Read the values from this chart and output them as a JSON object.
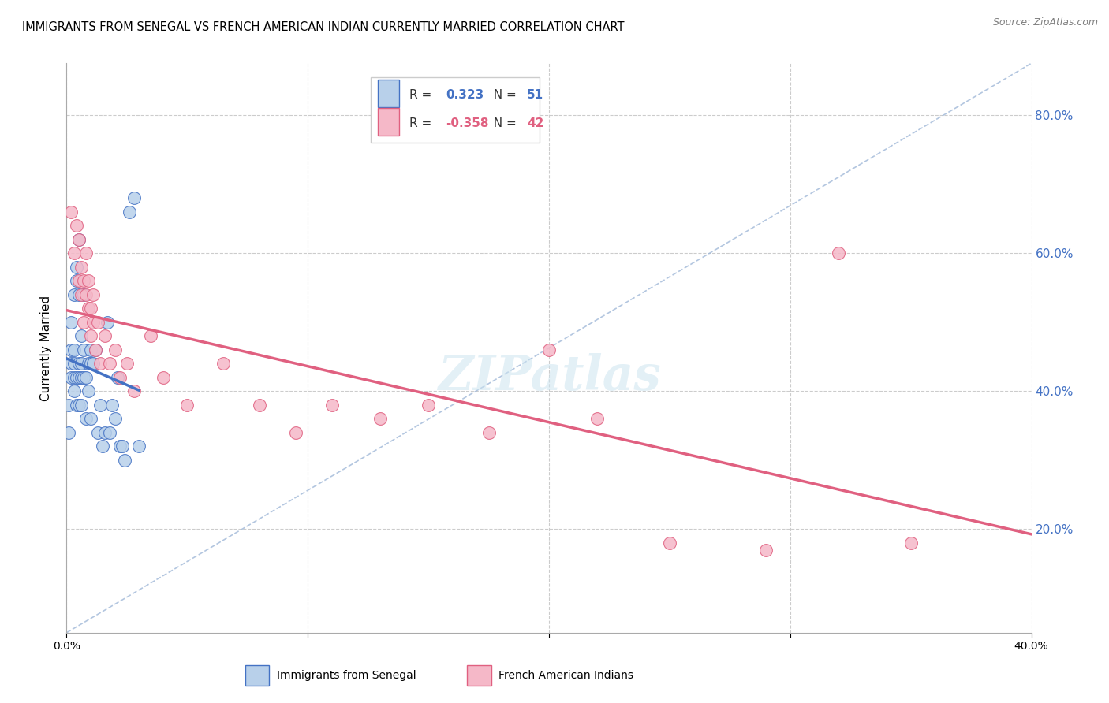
{
  "title": "IMMIGRANTS FROM SENEGAL VS FRENCH AMERICAN INDIAN CURRENTLY MARRIED CORRELATION CHART",
  "source": "Source: ZipAtlas.com",
  "ylabel": "Currently Married",
  "legend1_label": "Immigrants from Senegal",
  "legend2_label": "French American Indians",
  "r1": 0.323,
  "n1": 51,
  "r2": -0.358,
  "n2": 42,
  "xlim": [
    0.0,
    0.4
  ],
  "ylim": [
    0.05,
    0.875
  ],
  "right_yticks": [
    0.2,
    0.4,
    0.6,
    0.8
  ],
  "right_ytick_labels": [
    "20.0%",
    "40.0%",
    "60.0%",
    "80.0%"
  ],
  "blue_color": "#b8d0ea",
  "pink_color": "#f5b8c8",
  "blue_line_color": "#4472c4",
  "pink_line_color": "#e06080",
  "ref_line_color": "#a0b8d8",
  "watermark": "ZIPatlas",
  "blue_scatter_x": [
    0.001,
    0.001,
    0.002,
    0.002,
    0.002,
    0.002,
    0.003,
    0.003,
    0.003,
    0.003,
    0.003,
    0.004,
    0.004,
    0.004,
    0.004,
    0.005,
    0.005,
    0.005,
    0.005,
    0.005,
    0.006,
    0.006,
    0.006,
    0.006,
    0.007,
    0.007,
    0.007,
    0.008,
    0.008,
    0.009,
    0.009,
    0.01,
    0.01,
    0.01,
    0.011,
    0.012,
    0.013,
    0.014,
    0.015,
    0.016,
    0.017,
    0.018,
    0.019,
    0.02,
    0.021,
    0.022,
    0.023,
    0.024,
    0.026,
    0.028,
    0.03
  ],
  "blue_scatter_y": [
    0.34,
    0.38,
    0.42,
    0.44,
    0.46,
    0.5,
    0.4,
    0.42,
    0.44,
    0.46,
    0.54,
    0.38,
    0.42,
    0.56,
    0.58,
    0.38,
    0.42,
    0.44,
    0.54,
    0.62,
    0.38,
    0.42,
    0.44,
    0.48,
    0.42,
    0.46,
    0.54,
    0.36,
    0.42,
    0.4,
    0.44,
    0.36,
    0.44,
    0.46,
    0.44,
    0.46,
    0.34,
    0.38,
    0.32,
    0.34,
    0.5,
    0.34,
    0.38,
    0.36,
    0.42,
    0.32,
    0.32,
    0.3,
    0.66,
    0.68,
    0.32
  ],
  "pink_scatter_x": [
    0.002,
    0.003,
    0.004,
    0.005,
    0.005,
    0.006,
    0.006,
    0.007,
    0.007,
    0.008,
    0.008,
    0.009,
    0.009,
    0.01,
    0.01,
    0.011,
    0.011,
    0.012,
    0.013,
    0.014,
    0.016,
    0.018,
    0.02,
    0.022,
    0.025,
    0.028,
    0.035,
    0.04,
    0.05,
    0.065,
    0.08,
    0.095,
    0.11,
    0.13,
    0.15,
    0.175,
    0.2,
    0.22,
    0.25,
    0.29,
    0.32,
    0.35
  ],
  "pink_scatter_y": [
    0.66,
    0.6,
    0.64,
    0.56,
    0.62,
    0.54,
    0.58,
    0.5,
    0.56,
    0.54,
    0.6,
    0.52,
    0.56,
    0.48,
    0.52,
    0.5,
    0.54,
    0.46,
    0.5,
    0.44,
    0.48,
    0.44,
    0.46,
    0.42,
    0.44,
    0.4,
    0.48,
    0.42,
    0.38,
    0.44,
    0.38,
    0.34,
    0.38,
    0.36,
    0.38,
    0.34,
    0.46,
    0.36,
    0.18,
    0.17,
    0.6,
    0.18
  ]
}
